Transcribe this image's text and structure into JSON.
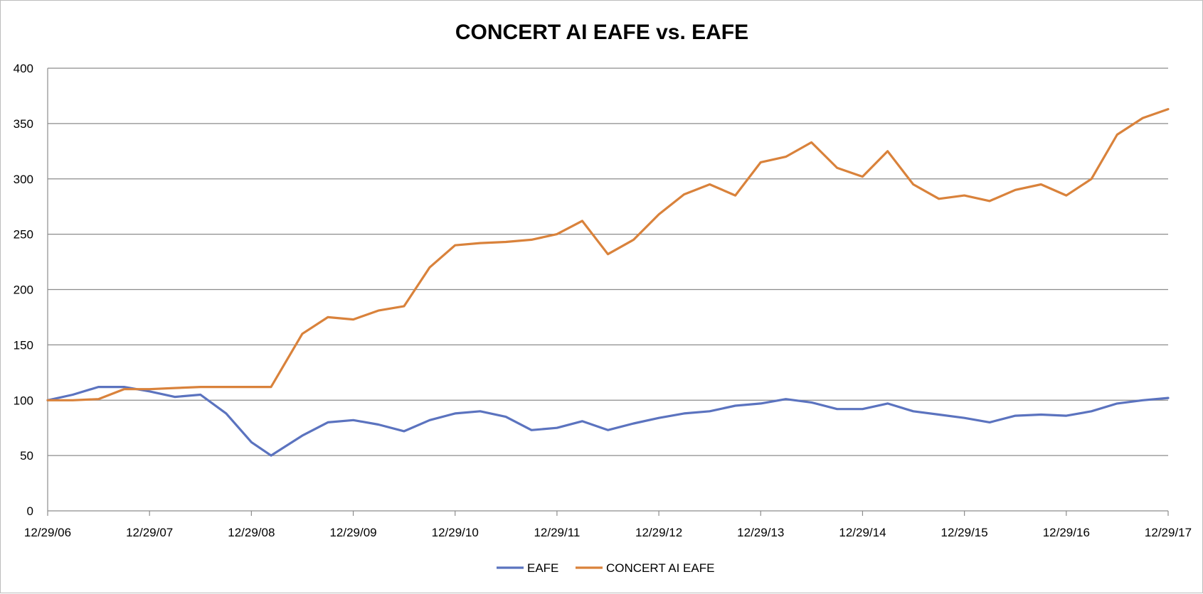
{
  "chart_data": {
    "type": "line",
    "title": "CONCERT AI EAFE vs. EAFE",
    "xlabel": "",
    "ylabel": "",
    "ylim": [
      0,
      400
    ],
    "yticks": [
      "0",
      "50",
      "100",
      "150",
      "200",
      "250",
      "300",
      "350",
      "400"
    ],
    "xticks": [
      "12/29/06",
      "12/29/07",
      "12/29/08",
      "12/29/09",
      "12/29/10",
      "12/29/11",
      "12/29/12",
      "12/29/13",
      "12/29/14",
      "12/29/15",
      "12/29/16",
      "12/29/17"
    ],
    "grid": true,
    "legend_position": "bottom",
    "x": [
      "12/29/06",
      "03/29/07",
      "06/29/07",
      "09/29/07",
      "12/29/07",
      "03/29/08",
      "06/29/08",
      "09/29/08",
      "12/29/08",
      "03/09/09",
      "06/29/09",
      "09/29/09",
      "12/29/09",
      "03/29/10",
      "06/29/10",
      "09/29/10",
      "12/29/10",
      "03/29/11",
      "06/29/11",
      "09/29/11",
      "12/29/11",
      "03/29/12",
      "06/29/12",
      "09/29/12",
      "12/29/12",
      "03/29/13",
      "06/29/13",
      "09/29/13",
      "12/29/13",
      "03/29/14",
      "06/29/14",
      "09/29/14",
      "12/29/14",
      "03/29/15",
      "06/29/15",
      "09/29/15",
      "12/29/15",
      "03/29/16",
      "06/29/16",
      "09/29/16",
      "12/29/16",
      "03/29/17",
      "06/29/17",
      "09/29/17",
      "12/29/17"
    ],
    "series": [
      {
        "name": "EAFE",
        "color": "#5b73bf",
        "values": [
          100,
          105,
          112,
          112,
          108,
          103,
          105,
          88,
          62,
          50,
          68,
          80,
          82,
          78,
          72,
          82,
          88,
          90,
          85,
          73,
          75,
          81,
          73,
          79,
          84,
          88,
          90,
          95,
          97,
          101,
          98,
          92,
          92,
          97,
          90,
          87,
          84,
          80,
          86,
          87,
          86,
          90,
          97,
          100,
          102
        ]
      },
      {
        "name": "CONCERT AI EAFE",
        "color": "#d9823b",
        "values": [
          100,
          100,
          101,
          110,
          110,
          111,
          112,
          112,
          112,
          112,
          160,
          175,
          173,
          181,
          185,
          220,
          240,
          242,
          243,
          245,
          250,
          262,
          232,
          245,
          268,
          286,
          295,
          285,
          315,
          320,
          333,
          310,
          302,
          325,
          295,
          282,
          285,
          280,
          290,
          295,
          285,
          300,
          340,
          355,
          363
        ]
      }
    ]
  }
}
